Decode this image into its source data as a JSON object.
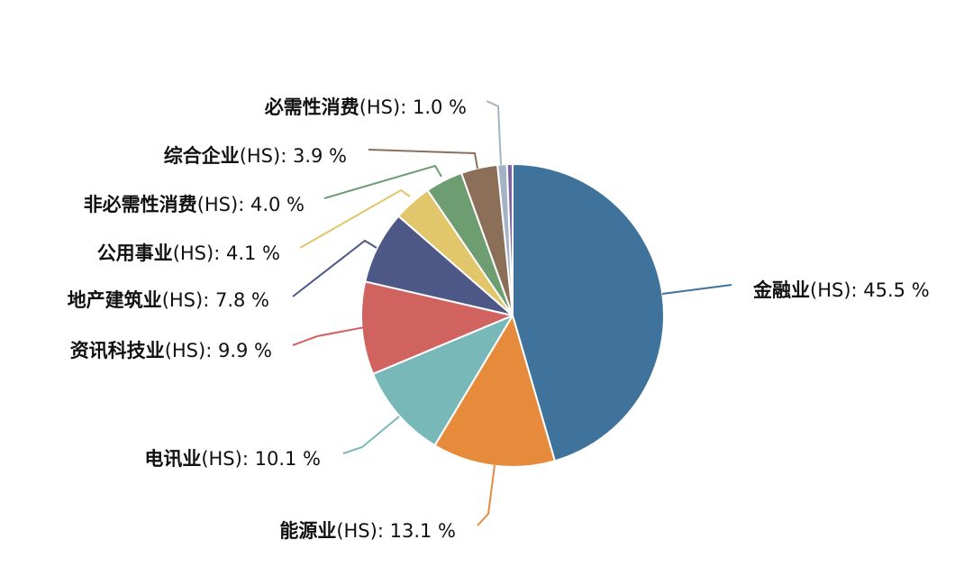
{
  "chart_data": {
    "type": "pie",
    "title": "",
    "slices": [
      {
        "name": "金融业",
        "suffix": "(HS)",
        "value": 45.5,
        "value_text": "45.5 %",
        "color": "#3f739c"
      },
      {
        "name": "能源业",
        "suffix": "(HS)",
        "value": 13.1,
        "value_text": "13.1 %",
        "color": "#e68b3c"
      },
      {
        "name": "电讯业",
        "suffix": "(HS)",
        "value": 10.1,
        "value_text": "10.1 %",
        "color": "#79b8b8"
      },
      {
        "name": "资讯科技业",
        "suffix": "(HS)",
        "value": 9.9,
        "value_text": "9.9 %",
        "color": "#d0625f"
      },
      {
        "name": "地产建筑业",
        "suffix": "(HS)",
        "value": 7.8,
        "value_text": "7.8 %",
        "color": "#4e5887"
      },
      {
        "name": "公用事业",
        "suffix": "(HS)",
        "value": 4.1,
        "value_text": "4.1 %",
        "color": "#e1c66b"
      },
      {
        "name": "非必需性消费",
        "suffix": "(HS)",
        "value": 4.0,
        "value_text": "4.0 %",
        "color": "#6e9d72"
      },
      {
        "name": "综合企业",
        "suffix": "(HS)",
        "value": 3.9,
        "value_text": "3.9 %",
        "color": "#8b6f58"
      },
      {
        "name": "必需性消费",
        "suffix": "(HS)",
        "value": 1.0,
        "value_text": "1.0 %",
        "color": "#a3b3c4"
      },
      {
        "name": "",
        "suffix": "",
        "value": 0.6,
        "value_text": "",
        "color": "#7b64a6"
      }
    ]
  }
}
